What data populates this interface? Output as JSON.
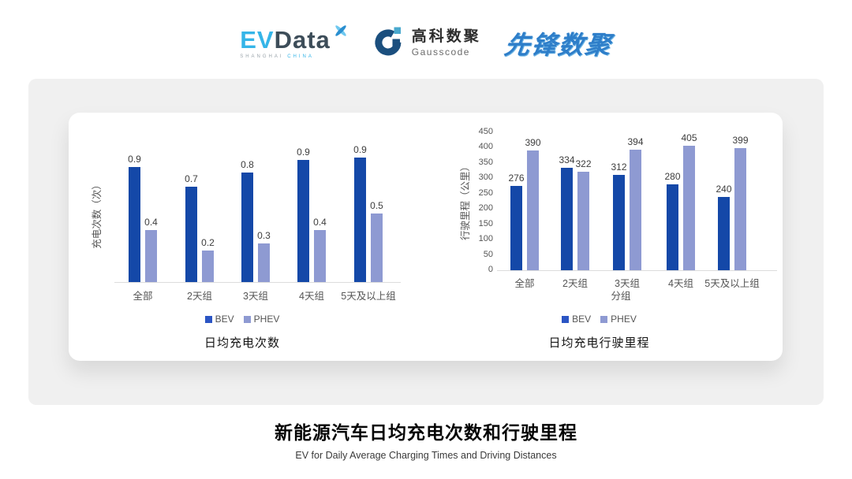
{
  "header": {
    "evdata": {
      "ev": "EV",
      "data": "Data",
      "sub_left": "SHANGHAI",
      "sub_right": "CHINA"
    },
    "gausscode": {
      "cn": "高科数聚",
      "en": "Gausscode"
    },
    "pioneer": {
      "text": "先锋数聚"
    }
  },
  "footer": {
    "title": "新能源汽车日均充电次数和行驶里程",
    "subtitle": "EV for Daily Average Charging Times and Driving Distances"
  },
  "colors": {
    "bev_bar": "#1448A8",
    "phev_bar": "#8E9AD2",
    "legend_bev": "#2B55C4",
    "legend_phev": "#8E9AD2",
    "evdata_cyan": "#35B5E8",
    "evdata_dark": "#3D4D59",
    "gauss_navy": "#1B4F7E",
    "gauss_lightblue": "#49A9CE",
    "pioneer_blue": "#2E7EC9",
    "panel_gray": "#F0F0F0",
    "baseline_gray": "#DCDCDC"
  },
  "chart_data": [
    {
      "type": "bar",
      "title": "日均充电次数",
      "ylabel": "充电次数（次）",
      "xlabel": "",
      "categories": [
        "全部",
        "2天组",
        "3天组",
        "4天组",
        "5天及以上组"
      ],
      "series": [
        {
          "name": "BEV",
          "values": [
            0.9,
            0.7,
            0.8,
            0.9,
            0.9
          ],
          "plot_values": [
            0.87,
            0.72,
            0.83,
            0.92,
            0.94
          ]
        },
        {
          "name": "PHEV",
          "values": [
            0.4,
            0.2,
            0.3,
            0.4,
            0.5
          ],
          "plot_values": [
            0.39,
            0.24,
            0.29,
            0.39,
            0.52
          ]
        }
      ],
      "ylim": [
        0,
        1.08
      ],
      "yticks_visible": false,
      "grid": false,
      "legend": [
        "BEV",
        "PHEV"
      ],
      "legend_position": "bottom"
    },
    {
      "type": "bar",
      "title": "日均充电行驶里程",
      "ylabel": "行驶里程（公里）",
      "xlabel": "分组",
      "categories": [
        "全部",
        "2天组",
        "3天组",
        "4天组",
        "5天及以上组"
      ],
      "series": [
        {
          "name": "BEV",
          "values": [
            276,
            334,
            312,
            280,
            240
          ]
        },
        {
          "name": "PHEV",
          "values": [
            390,
            322,
            394,
            405,
            399
          ]
        }
      ],
      "ylim": [
        0,
        450
      ],
      "yticks": [
        0,
        50,
        100,
        150,
        200,
        250,
        300,
        350,
        400,
        450
      ],
      "grid": false,
      "legend": [
        "BEV",
        "PHEV"
      ],
      "legend_position": "bottom"
    }
  ]
}
